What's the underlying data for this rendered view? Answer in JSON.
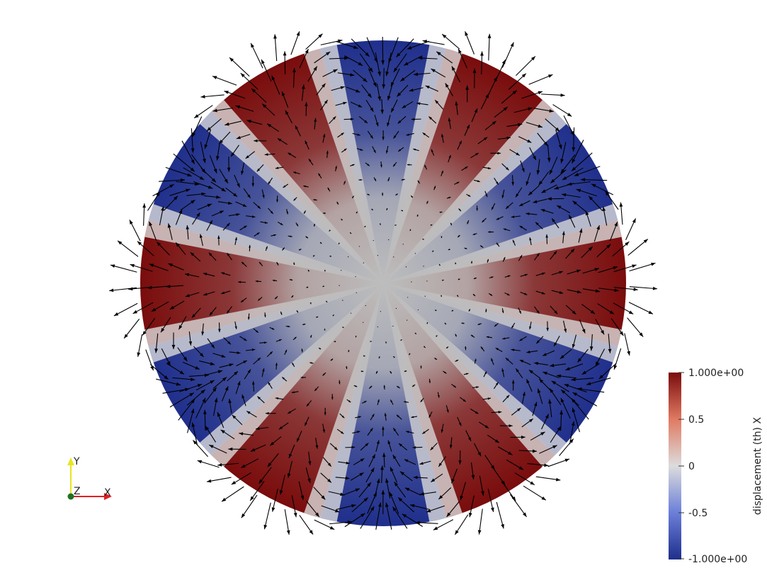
{
  "colorbar": {
    "title": "displacement (th) X",
    "ticks": [
      "1.000e+00",
      "0.5",
      "0",
      "-0.5",
      "-1.000e+00"
    ],
    "range": [
      -1,
      1
    ],
    "colors": {
      "low": "#1f2f8c",
      "mid_low": "#6b7fd8",
      "mid": "#dcdcdc",
      "mid_high": "#e07a62",
      "high": "#7a0c0c"
    }
  },
  "axes": {
    "x_label": "X",
    "y_label": "Y",
    "z_label": "Z",
    "x_color": "#e02020",
    "y_color": "#e6e620",
    "z_color": "#207020"
  },
  "field": {
    "angular_mode": 6,
    "center_color": "#bdbdbd",
    "arrow_color": "#000000"
  }
}
